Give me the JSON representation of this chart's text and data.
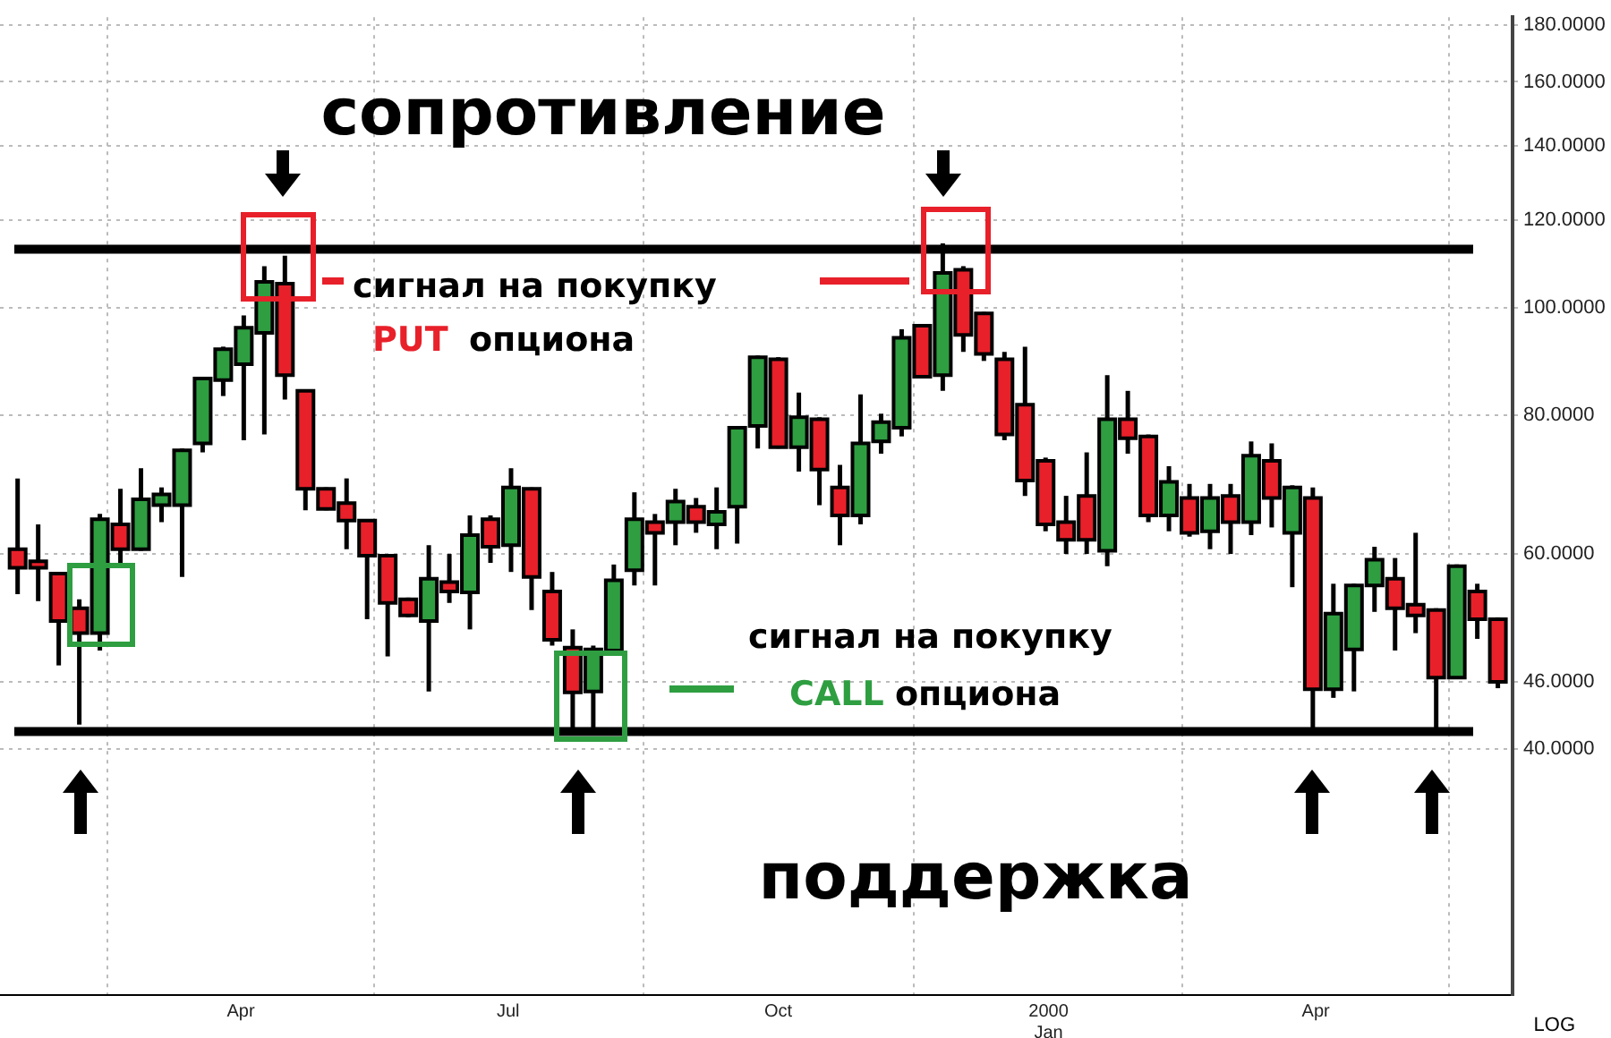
{
  "chart_data": {
    "type": "candlestick",
    "log": true,
    "grid": true,
    "legend": false,
    "x": [
      "1999-01-15",
      "1999-01-22",
      "1999-01-29",
      "1999-02-05",
      "1999-02-12",
      "1999-02-19",
      "1999-02-26",
      "1999-03-05",
      "1999-03-12",
      "1999-03-19",
      "1999-03-26",
      "1999-04-02",
      "1999-04-09",
      "1999-04-16",
      "1999-04-23",
      "1999-04-30",
      "1999-05-07",
      "1999-05-14",
      "1999-05-21",
      "1999-05-28",
      "1999-06-04",
      "1999-06-11",
      "1999-06-18",
      "1999-06-25",
      "1999-07-02",
      "1999-07-09",
      "1999-07-16",
      "1999-07-23",
      "1999-07-30",
      "1999-08-06",
      "1999-08-13",
      "1999-08-20",
      "1999-08-27",
      "1999-09-03",
      "1999-09-10",
      "1999-09-17",
      "1999-09-24",
      "1999-10-01",
      "1999-10-08",
      "1999-10-15",
      "1999-10-22",
      "1999-10-29",
      "1999-11-05",
      "1999-11-12",
      "1999-11-19",
      "1999-11-26",
      "1999-12-03",
      "1999-12-10",
      "1999-12-17",
      "1999-12-24",
      "1999-12-31",
      "2000-01-07",
      "2000-01-14",
      "2000-01-21",
      "2000-01-28",
      "2000-02-04",
      "2000-02-11",
      "2000-02-18",
      "2000-02-25",
      "2000-03-03",
      "2000-03-10",
      "2000-03-17",
      "2000-03-24",
      "2000-03-31",
      "2000-04-07",
      "2000-04-14",
      "2000-04-21",
      "2000-04-28",
      "2000-05-05",
      "2000-05-12",
      "2000-05-19",
      "2000-05-26",
      "2000-06-02"
    ],
    "ohlc": [
      [
        60.6,
        70.2,
        55.2,
        58.3
      ],
      [
        59.1,
        63.8,
        54.4,
        58.3
      ],
      [
        57.6,
        57.8,
        47.6,
        52.2
      ],
      [
        53.6,
        54.6,
        42.1,
        50.9
      ],
      [
        50.9,
        65.2,
        49.1,
        64.5
      ],
      [
        63.8,
        68.7,
        58.3,
        60.6
      ],
      [
        60.6,
        71.7,
        60.4,
        67.2
      ],
      [
        66.4,
        68.9,
        64.1,
        67.9
      ],
      [
        66.4,
        74.7,
        57.2,
        74.4
      ],
      [
        75.5,
        86.7,
        74.1,
        86.4
      ],
      [
        86.1,
        92.3,
        83.3,
        91.8
      ],
      [
        89.0,
        98.5,
        76.0,
        96.0
      ],
      [
        95.0,
        109.1,
        76.9,
        105.6
      ],
      [
        105.2,
        111.5,
        82.7,
        87.0
      ],
      [
        84.2,
        84.5,
        65.7,
        68.7
      ],
      [
        68.7,
        68.9,
        65.7,
        65.9
      ],
      [
        66.7,
        70.2,
        60.6,
        64.3
      ],
      [
        64.3,
        64.5,
        52.4,
        59.8
      ],
      [
        59.8,
        60.0,
        48.5,
        54.2
      ],
      [
        54.6,
        54.8,
        52.6,
        52.8
      ],
      [
        52.2,
        61.1,
        45.1,
        57.0
      ],
      [
        56.6,
        60.0,
        54.2,
        55.5
      ],
      [
        55.4,
        65.0,
        51.3,
        62.4
      ],
      [
        64.5,
        65.0,
        58.9,
        60.9
      ],
      [
        61.1,
        71.7,
        57.8,
        68.9
      ],
      [
        68.7,
        68.9,
        53.4,
        57.2
      ],
      [
        55.5,
        57.8,
        49.6,
        50.2
      ],
      [
        49.4,
        51.3,
        41.2,
        45.0
      ],
      [
        45.1,
        49.6,
        41.2,
        49.2
      ],
      [
        49.1,
        58.7,
        48.9,
        56.8
      ],
      [
        58.0,
        68.2,
        56.2,
        64.5
      ],
      [
        64.1,
        65.2,
        56.2,
        62.7
      ],
      [
        64.1,
        68.7,
        61.1,
        66.9
      ],
      [
        66.2,
        67.4,
        62.7,
        64.1
      ],
      [
        63.8,
        68.9,
        60.6,
        65.5
      ],
      [
        66.2,
        78.3,
        61.3,
        78.0
      ],
      [
        78.3,
        90.6,
        74.7,
        90.3
      ],
      [
        89.9,
        90.3,
        74.7,
        74.9
      ],
      [
        74.9,
        83.9,
        71.2,
        79.7
      ],
      [
        79.4,
        79.7,
        66.4,
        71.5
      ],
      [
        68.9,
        72.2,
        61.1,
        65.0
      ],
      [
        65.0,
        83.6,
        63.8,
        75.5
      ],
      [
        75.8,
        80.3,
        73.9,
        78.9
      ],
      [
        78.0,
        95.7,
        76.6,
        94.0
      ],
      [
        96.4,
        96.7,
        86.4,
        86.7
      ],
      [
        87.0,
        114.4,
        84.2,
        107.6
      ],
      [
        108.3,
        109.1,
        91.3,
        94.6
      ],
      [
        98.9,
        99.2,
        89.6,
        90.9
      ],
      [
        89.9,
        91.3,
        76.0,
        76.9
      ],
      [
        81.8,
        92.3,
        67.7,
        69.9
      ],
      [
        72.8,
        73.3,
        62.9,
        63.8
      ],
      [
        64.1,
        67.7,
        60.0,
        61.8
      ],
      [
        67.7,
        74.1,
        60.0,
        61.8
      ],
      [
        60.4,
        87.0,
        58.5,
        79.4
      ],
      [
        79.4,
        84.2,
        73.9,
        76.3
      ],
      [
        76.6,
        76.9,
        64.1,
        65.0
      ],
      [
        65.0,
        72.0,
        62.9,
        69.7
      ],
      [
        67.4,
        69.4,
        62.2,
        62.7
      ],
      [
        62.9,
        69.4,
        60.6,
        67.4
      ],
      [
        67.7,
        69.4,
        60.0,
        64.1
      ],
      [
        64.1,
        75.8,
        62.4,
        73.6
      ],
      [
        72.8,
        75.5,
        63.4,
        67.4
      ],
      [
        62.7,
        69.2,
        56.0,
        68.9
      ],
      [
        67.4,
        68.9,
        41.2,
        45.3
      ],
      [
        45.3,
        56.4,
        44.5,
        53.0
      ],
      [
        49.2,
        56.4,
        45.1,
        56.2
      ],
      [
        56.2,
        60.9,
        53.2,
        59.3
      ],
      [
        57.0,
        59.5,
        49.1,
        53.6
      ],
      [
        54.0,
        62.7,
        50.9,
        52.8
      ],
      [
        53.4,
        53.6,
        41.3,
        46.4
      ],
      [
        46.4,
        58.7,
        46.3,
        58.5
      ],
      [
        55.5,
        56.4,
        50.3,
        52.4
      ],
      [
        52.4,
        52.6,
        45.4,
        46.0
      ]
    ],
    "colors": [
      "#e8202a",
      "#e8202a",
      "#e8202a",
      "#e8202a",
      "#2e9e41",
      "#e8202a",
      "#2e9e41",
      "#2e9e41",
      "#2e9e41",
      "#2e9e41",
      "#2e9e41",
      "#2e9e41",
      "#2e9e41",
      "#e8202a",
      "#e8202a",
      "#e8202a",
      "#e8202a",
      "#e8202a",
      "#e8202a",
      "#e8202a",
      "#2e9e41",
      "#e8202a",
      "#2e9e41",
      "#e8202a",
      "#2e9e41",
      "#e8202a",
      "#e8202a",
      "#e8202a",
      "#2e9e41",
      "#2e9e41",
      "#2e9e41",
      "#e8202a",
      "#2e9e41",
      "#e8202a",
      "#2e9e41",
      "#2e9e41",
      "#2e9e41",
      "#e8202a",
      "#2e9e41",
      "#e8202a",
      "#e8202a",
      "#2e9e41",
      "#2e9e41",
      "#2e9e41",
      "#e8202a",
      "#2e9e41",
      "#e8202a",
      "#e8202a",
      "#e8202a",
      "#e8202a",
      "#e8202a",
      "#e8202a",
      "#e8202a",
      "#2e9e41",
      "#e8202a",
      "#e8202a",
      "#2e9e41",
      "#e8202a",
      "#2e9e41",
      "#e8202a",
      "#2e9e41",
      "#e8202a",
      "#2e9e41",
      "#e8202a",
      "#2e9e41",
      "#2e9e41",
      "#2e9e41",
      "#e8202a",
      "#e8202a",
      "#e8202a",
      "#2e9e41",
      "#e8202a",
      "#e8202a"
    ],
    "xlim": [
      "1999-01-09",
      "2000-06-07"
    ],
    "xticks": [
      {
        "value": "1999-04-01",
        "label": "Apr"
      },
      {
        "value": "1999-07-01",
        "label": "Jul"
      },
      {
        "value": "1999-10-01",
        "label": "Oct"
      },
      {
        "value": "2000-01-01",
        "label": "2000\nJan"
      },
      {
        "value": "2000-04-01",
        "label": "Apr"
      }
    ],
    "ylim": [
      24,
      183
    ],
    "yticks": [
      {
        "value": 40,
        "label": "40.0000"
      },
      {
        "value": 46,
        "label": "46.0000"
      },
      {
        "value": 60,
        "label": "60.0000"
      },
      {
        "value": 80,
        "label": "80.0000"
      },
      {
        "value": 100,
        "label": "100.0000"
      },
      {
        "value": 120,
        "label": "120.0000"
      },
      {
        "value": 140,
        "label": "140.0000"
      },
      {
        "value": 160,
        "label": "160.0000"
      },
      {
        "value": 180,
        "label": "180.0000"
      }
    ],
    "ref_lines": [
      {
        "axis": "y",
        "value": 113,
        "label": "сопротивление",
        "color": "#000000"
      },
      {
        "axis": "y",
        "value": 41.5,
        "label": "поддержка",
        "color": "#000000"
      }
    ],
    "annotations": [
      "сигнал на покупку",
      "PUT",
      "опциона",
      "сигнал на покупку",
      "CALL",
      "опциона",
      "LOG"
    ]
  }
}
